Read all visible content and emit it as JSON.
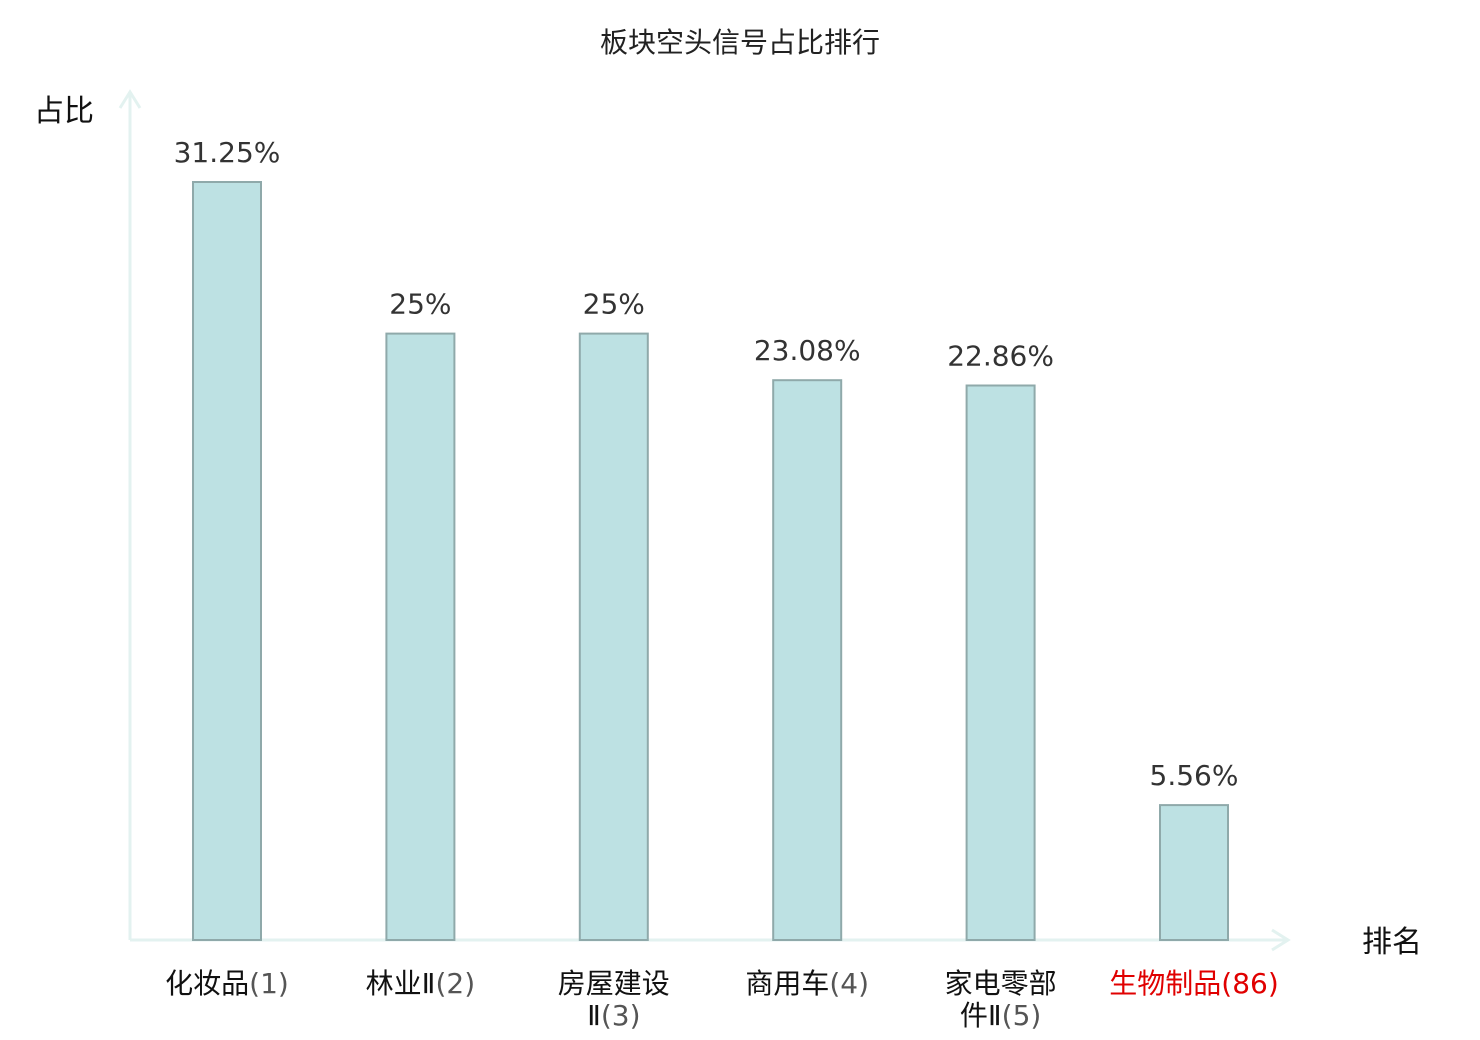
{
  "chart_data": {
    "type": "bar",
    "title": "板块空头信号占比排行",
    "ylabel": "占比",
    "xlabel": "排名",
    "categories": [
      {
        "lines": [
          "化妆品"
        ],
        "rank": "(1)",
        "highlight": false
      },
      {
        "lines": [
          "林业Ⅱ"
        ],
        "rank": "(2)",
        "highlight": false
      },
      {
        "lines": [
          "房屋建设",
          "Ⅱ"
        ],
        "rank": "(3)",
        "highlight": false
      },
      {
        "lines": [
          "商用车"
        ],
        "rank": "(4)",
        "highlight": false
      },
      {
        "lines": [
          "家电零部",
          "件Ⅱ"
        ],
        "rank": "(5)",
        "highlight": false
      },
      {
        "lines": [
          "生物制品"
        ],
        "rank": "(86)",
        "highlight": true
      }
    ],
    "values": [
      31.25,
      25,
      25,
      23.08,
      22.86,
      5.56
    ],
    "value_labels": [
      "31.25%",
      "25%",
      "25%",
      "23.08%",
      "22.86%",
      "5.56%"
    ],
    "ylim": [
      0,
      35
    ],
    "grid": false,
    "legend": "none",
    "colors": {
      "bar_fill": "#bde1e3",
      "bar_stroke": "#8fa9aa",
      "axis": "#e3f2f0",
      "highlight_label": "#e00000"
    }
  }
}
